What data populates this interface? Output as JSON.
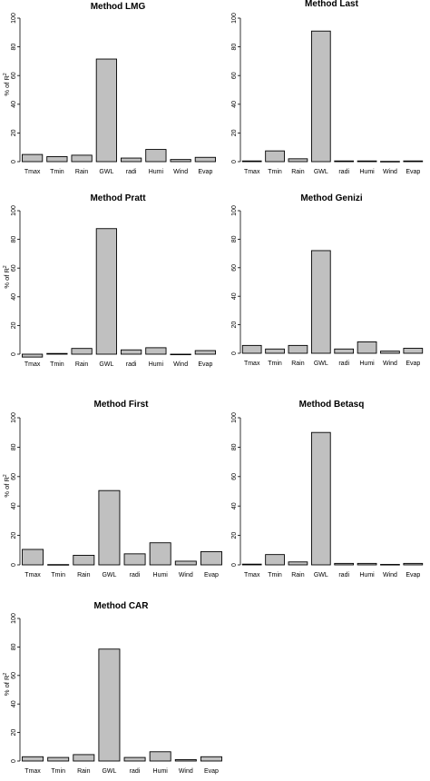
{
  "chart_data": [
    {
      "type": "bar",
      "title": "Method LMG",
      "ylabel_prefix": "% of R",
      "ylabel_sup": "2",
      "categories": [
        "Tmax",
        "Tmin",
        "Rain",
        "GWL",
        "radi",
        "Humi",
        "Wind",
        "Evap"
      ],
      "values": [
        5,
        3.5,
        4.5,
        71.5,
        2.5,
        8.5,
        1.5,
        3
      ],
      "ylim": [
        0,
        100
      ],
      "yticks": [
        0,
        20,
        40,
        60,
        80,
        100
      ]
    },
    {
      "type": "bar",
      "title": "Method Last",
      "ylabel_prefix": "",
      "ylabel_sup": "",
      "categories": [
        "Tmax",
        "Tmin",
        "Rain",
        "GWL",
        "radi",
        "Humi",
        "Wind",
        "Evap"
      ],
      "values": [
        0.5,
        7.5,
        2,
        91,
        0.5,
        0.5,
        0.2,
        0.5
      ],
      "ylim": [
        0,
        100
      ],
      "yticks": [
        0,
        20,
        40,
        60,
        80,
        100
      ]
    },
    {
      "type": "bar",
      "title": "Method Pratt",
      "ylabel_prefix": "% of R",
      "ylabel_sup": "2",
      "categories": [
        "Tmax",
        "Tmin",
        "Rain",
        "GWL",
        "radi",
        "Humi",
        "Wind",
        "Evap"
      ],
      "values": [
        -2,
        0.5,
        4,
        87.5,
        3,
        4.5,
        -0.2,
        2.5
      ],
      "ylim": [
        0,
        100
      ],
      "yticks": [
        0,
        20,
        40,
        60,
        80,
        100
      ]
    },
    {
      "type": "bar",
      "title": "Method Genizi",
      "ylabel_prefix": "",
      "ylabel_sup": "",
      "categories": [
        "Tmax",
        "Tmin",
        "Rain",
        "GWL",
        "radi",
        "Humi",
        "Wind",
        "Evap"
      ],
      "values": [
        5.5,
        3,
        5.5,
        72,
        3,
        8,
        1.5,
        3.5
      ],
      "ylim": [
        0,
        100
      ],
      "yticks": [
        0,
        20,
        40,
        60,
        80,
        100
      ]
    },
    {
      "type": "bar",
      "title": "Method First",
      "ylabel_prefix": "% of R",
      "ylabel_sup": "2",
      "categories": [
        "Tmax",
        "Tmin",
        "Rain",
        "GWL",
        "radi",
        "Humi",
        "Wind",
        "Evap"
      ],
      "values": [
        10.5,
        0.2,
        6.5,
        50.5,
        7.5,
        15,
        2.5,
        9
      ],
      "ylim": [
        0,
        100
      ],
      "yticks": [
        0,
        20,
        40,
        60,
        80,
        100
      ]
    },
    {
      "type": "bar",
      "title": "Method Betasq",
      "ylabel_prefix": "",
      "ylabel_sup": "",
      "categories": [
        "Tmax",
        "Tmin",
        "Rain",
        "GWL",
        "radi",
        "Humi",
        "Wind",
        "Evap"
      ],
      "values": [
        0.5,
        7,
        2,
        90,
        1,
        1,
        0.3,
        1
      ],
      "ylim": [
        0,
        100
      ],
      "yticks": [
        0,
        20,
        40,
        60,
        80,
        100
      ]
    },
    {
      "type": "bar",
      "title": "Method CAR",
      "ylabel_prefix": "% of R",
      "ylabel_sup": "2",
      "categories": [
        "Tmax",
        "Tmin",
        "Rain",
        "GWL",
        "radi",
        "Humi",
        "Wind",
        "Evap"
      ],
      "values": [
        3,
        2.5,
        4.5,
        78.5,
        2.5,
        6.5,
        1,
        3
      ],
      "ylim": [
        0,
        100
      ],
      "yticks": [
        0,
        20,
        40,
        60,
        80,
        100
      ]
    }
  ]
}
